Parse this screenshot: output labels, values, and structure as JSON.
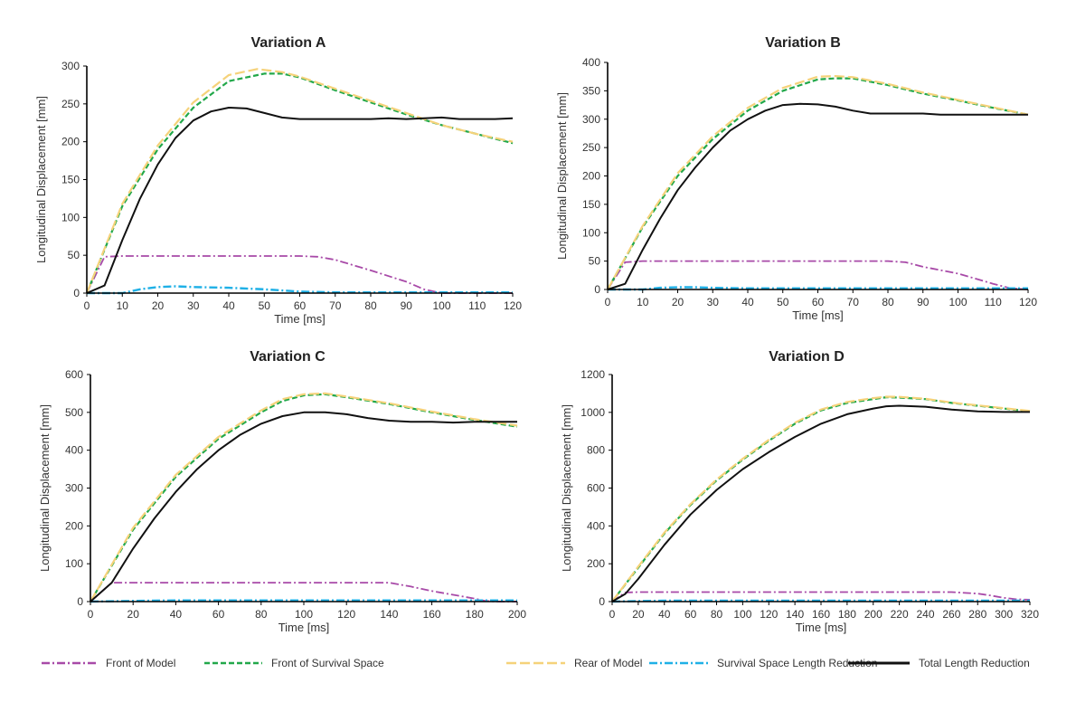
{
  "legend_items": [
    {
      "name": "Front of Model",
      "color": "#a84aa8",
      "dash": "dashdot"
    },
    {
      "name": "Front of Survival Space",
      "color": "#22a84a",
      "dash": "dash"
    },
    {
      "name": "Rear of Model",
      "color": "#f5d27a",
      "dash": "longdash"
    },
    {
      "name": "Survival Space Length Reduction",
      "color": "#1fb0e6",
      "dash": "dashdot"
    },
    {
      "name": "Total Length Reduction",
      "color": "#111111",
      "dash": "solid"
    }
  ],
  "chart_data": [
    {
      "type": "line",
      "title": "Variation A",
      "xlabel": "Time [ms]",
      "ylabel": "Longitudinal Displacement [mm]",
      "xlim": [
        0,
        120
      ],
      "ylim": [
        0,
        300
      ],
      "xticks": [
        0,
        10,
        20,
        30,
        40,
        50,
        60,
        70,
        80,
        90,
        100,
        110,
        120
      ],
      "yticks": [
        0,
        50,
        100,
        150,
        200,
        250,
        300
      ],
      "series": [
        {
          "name": "Front of Model",
          "x": [
            0,
            5,
            10,
            20,
            30,
            40,
            50,
            60,
            65,
            70,
            80,
            90,
            95,
            100,
            110,
            120
          ],
          "y": [
            0,
            48,
            49,
            49,
            49,
            49,
            49,
            49,
            48,
            44,
            30,
            15,
            5,
            0,
            0,
            0
          ]
        },
        {
          "name": "Front of Survival Space",
          "x": [
            0,
            10,
            20,
            30,
            40,
            50,
            55,
            60,
            70,
            80,
            90,
            100,
            110,
            120
          ],
          "y": [
            0,
            115,
            190,
            245,
            280,
            290,
            290,
            285,
            268,
            252,
            236,
            222,
            210,
            198
          ]
        },
        {
          "name": "Rear of Model",
          "x": [
            0,
            10,
            20,
            30,
            40,
            48,
            55,
            60,
            70,
            80,
            90,
            100,
            110,
            120
          ],
          "y": [
            0,
            118,
            195,
            252,
            288,
            296,
            292,
            286,
            270,
            254,
            238,
            222,
            210,
            200
          ]
        },
        {
          "name": "Survival Space Length Reduction",
          "x": [
            0,
            10,
            15,
            20,
            25,
            30,
            40,
            50,
            60,
            70,
            80,
            90,
            100,
            110,
            120
          ],
          "y": [
            0,
            0,
            5,
            8,
            9,
            8,
            7,
            5,
            2,
            1,
            1,
            1,
            1,
            1,
            1
          ]
        },
        {
          "name": "Total Length Reduction",
          "x": [
            0,
            5,
            10,
            15,
            20,
            25,
            30,
            35,
            40,
            45,
            50,
            55,
            60,
            65,
            70,
            80,
            85,
            90,
            95,
            100,
            105,
            110,
            115,
            120
          ],
          "y": [
            0,
            10,
            70,
            125,
            170,
            205,
            228,
            240,
            245,
            244,
            238,
            232,
            230,
            230,
            230,
            230,
            231,
            230,
            231,
            232,
            230,
            230,
            230,
            231
          ]
        }
      ]
    },
    {
      "type": "line",
      "title": "Variation B",
      "xlabel": "Time [ms]",
      "ylabel": "Longitudinal Displacement [mm]",
      "xlim": [
        0,
        120
      ],
      "ylim": [
        0,
        400
      ],
      "xticks": [
        0,
        10,
        20,
        30,
        40,
        50,
        60,
        70,
        80,
        90,
        100,
        110,
        120
      ],
      "yticks": [
        0,
        50,
        100,
        150,
        200,
        250,
        300,
        350,
        400
      ],
      "series": [
        {
          "name": "Front of Model",
          "x": [
            0,
            5,
            10,
            20,
            30,
            40,
            50,
            60,
            70,
            80,
            85,
            90,
            100,
            110,
            115,
            120
          ],
          "y": [
            0,
            48,
            50,
            50,
            50,
            50,
            50,
            50,
            50,
            50,
            48,
            40,
            28,
            10,
            2,
            0
          ]
        },
        {
          "name": "Front of Survival Space",
          "x": [
            0,
            10,
            20,
            30,
            40,
            50,
            60,
            65,
            70,
            80,
            90,
            100,
            110,
            120
          ],
          "y": [
            0,
            110,
            200,
            265,
            315,
            350,
            370,
            372,
            372,
            360,
            345,
            333,
            320,
            308
          ]
        },
        {
          "name": "Rear of Model",
          "x": [
            0,
            10,
            20,
            30,
            40,
            50,
            60,
            65,
            70,
            80,
            90,
            100,
            110,
            120
          ],
          "y": [
            0,
            112,
            205,
            270,
            320,
            355,
            375,
            376,
            374,
            362,
            347,
            334,
            321,
            308
          ]
        },
        {
          "name": "Survival Space Length Reduction",
          "x": [
            0,
            10,
            15,
            20,
            25,
            30,
            40,
            50,
            60,
            70,
            80,
            90,
            100,
            110,
            120
          ],
          "y": [
            0,
            0,
            3,
            4,
            4,
            3,
            2,
            2,
            2,
            2,
            2,
            2,
            2,
            2,
            2
          ]
        },
        {
          "name": "Total Length Reduction",
          "x": [
            0,
            5,
            10,
            15,
            20,
            25,
            30,
            35,
            40,
            45,
            50,
            55,
            60,
            65,
            70,
            75,
            80,
            85,
            90,
            95,
            100,
            105,
            110,
            115,
            120
          ],
          "y": [
            0,
            10,
            70,
            125,
            175,
            215,
            250,
            280,
            300,
            315,
            325,
            327,
            326,
            322,
            315,
            310,
            310,
            310,
            310,
            308,
            308,
            308,
            308,
            308,
            308
          ]
        }
      ]
    },
    {
      "type": "line",
      "title": "Variation C",
      "xlabel": "Time [ms]",
      "ylabel": "Longitudinal Displacement [mm]",
      "xlim": [
        0,
        200
      ],
      "ylim": [
        0,
        600
      ],
      "xticks": [
        0,
        20,
        40,
        60,
        80,
        100,
        120,
        140,
        160,
        180,
        200
      ],
      "yticks": [
        0,
        100,
        200,
        300,
        400,
        500,
        600
      ],
      "series": [
        {
          "name": "Front of Model",
          "x": [
            0,
            10,
            20,
            40,
            60,
            80,
            100,
            120,
            140,
            150,
            160,
            170,
            180,
            185,
            190,
            200
          ],
          "y": [
            0,
            50,
            50,
            50,
            50,
            50,
            50,
            50,
            50,
            40,
            28,
            18,
            8,
            2,
            0,
            0
          ]
        },
        {
          "name": "Front of Survival Space",
          "x": [
            0,
            20,
            40,
            60,
            80,
            90,
            100,
            110,
            120,
            140,
            160,
            180,
            200
          ],
          "y": [
            0,
            190,
            330,
            430,
            500,
            530,
            545,
            548,
            540,
            522,
            500,
            480,
            462
          ]
        },
        {
          "name": "Rear of Model",
          "x": [
            0,
            20,
            40,
            60,
            80,
            90,
            100,
            110,
            120,
            140,
            160,
            180,
            200
          ],
          "y": [
            0,
            195,
            335,
            435,
            505,
            535,
            548,
            550,
            542,
            524,
            502,
            482,
            465
          ]
        },
        {
          "name": "Survival Space Length Reduction",
          "x": [
            0,
            20,
            40,
            60,
            80,
            100,
            120,
            140,
            160,
            180,
            200
          ],
          "y": [
            0,
            2,
            3,
            3,
            3,
            3,
            3,
            3,
            3,
            3,
            3
          ]
        },
        {
          "name": "Total Length Reduction",
          "x": [
            0,
            10,
            20,
            30,
            40,
            50,
            60,
            70,
            80,
            90,
            100,
            110,
            120,
            130,
            140,
            150,
            160,
            170,
            180,
            190,
            200
          ],
          "y": [
            0,
            50,
            140,
            220,
            290,
            350,
            400,
            440,
            470,
            490,
            500,
            500,
            495,
            485,
            478,
            475,
            475,
            473,
            475,
            475,
            475
          ]
        }
      ]
    },
    {
      "type": "line",
      "title": "Variation D",
      "xlabel": "Time [ms]",
      "ylabel": "Longitudinal Displacement [mm]",
      "xlim": [
        0,
        320
      ],
      "ylim": [
        0,
        1200
      ],
      "xticks": [
        0,
        20,
        40,
        60,
        80,
        100,
        120,
        140,
        160,
        180,
        200,
        220,
        240,
        260,
        280,
        300,
        320
      ],
      "yticks": [
        0,
        200,
        400,
        600,
        800,
        1000,
        1200
      ],
      "series": [
        {
          "name": "Front of Model",
          "x": [
            0,
            10,
            20,
            60,
            100,
            140,
            180,
            220,
            260,
            280,
            290,
            300,
            310,
            320
          ],
          "y": [
            0,
            48,
            50,
            50,
            50,
            50,
            50,
            50,
            50,
            42,
            32,
            20,
            12,
            10
          ]
        },
        {
          "name": "Front of Survival Space",
          "x": [
            0,
            20,
            40,
            60,
            80,
            100,
            120,
            140,
            160,
            180,
            200,
            210,
            220,
            240,
            260,
            280,
            300,
            320
          ],
          "y": [
            0,
            180,
            360,
            510,
            640,
            750,
            850,
            940,
            1010,
            1050,
            1070,
            1080,
            1078,
            1070,
            1050,
            1035,
            1020,
            1005
          ]
        },
        {
          "name": "Rear of Model",
          "x": [
            0,
            20,
            40,
            60,
            80,
            100,
            120,
            140,
            160,
            180,
            200,
            210,
            220,
            240,
            260,
            280,
            300,
            320
          ],
          "y": [
            0,
            185,
            365,
            515,
            645,
            755,
            855,
            945,
            1015,
            1055,
            1075,
            1083,
            1082,
            1072,
            1052,
            1037,
            1022,
            1008
          ]
        },
        {
          "name": "Survival Space Length Reduction",
          "x": [
            0,
            20,
            40,
            60,
            80,
            100,
            140,
            180,
            220,
            260,
            300,
            320
          ],
          "y": [
            0,
            3,
            5,
            5,
            5,
            5,
            5,
            5,
            5,
            5,
            5,
            5
          ]
        },
        {
          "name": "Total Length Reduction",
          "x": [
            0,
            10,
            20,
            40,
            60,
            80,
            100,
            120,
            140,
            160,
            180,
            200,
            210,
            220,
            240,
            260,
            280,
            300,
            320
          ],
          "y": [
            0,
            40,
            120,
            300,
            460,
            590,
            700,
            790,
            870,
            940,
            990,
            1020,
            1032,
            1035,
            1030,
            1015,
            1005,
            1002,
            1002
          ]
        }
      ]
    }
  ]
}
